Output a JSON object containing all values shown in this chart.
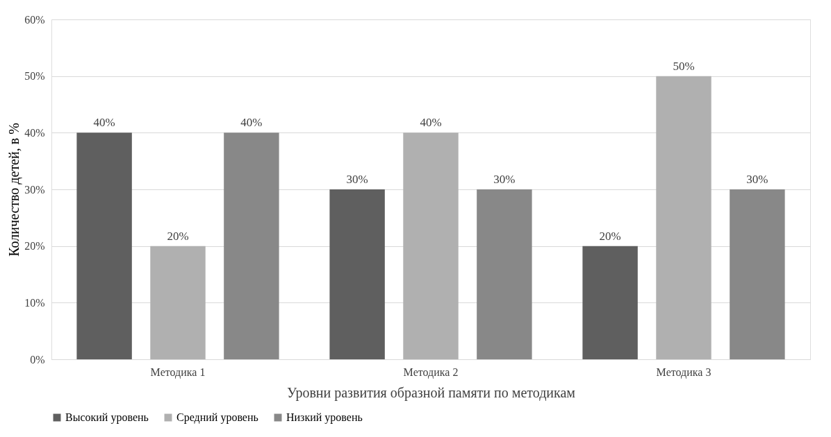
{
  "chart_data": {
    "type": "bar",
    "xlabel": "Уровни развития образной памяти по методикам",
    "ylabel": "Количество детей, в %",
    "categories": [
      "Методика 1",
      "Методика 2",
      "Методика 3"
    ],
    "series": [
      {
        "name": "Высокий уровень",
        "color": "#5f5f5f",
        "values": [
          40,
          30,
          20
        ],
        "value_labels": [
          "40%",
          "30%",
          "20%"
        ]
      },
      {
        "name": "Средний уровень",
        "color": "#b0b0b0",
        "values": [
          20,
          40,
          50
        ],
        "value_labels": [
          "20%",
          "40%",
          "50%"
        ]
      },
      {
        "name": "Низкий уровень",
        "color": "#888888",
        "values": [
          40,
          30,
          30
        ],
        "value_labels": [
          "40%",
          "30%",
          "30%"
        ]
      }
    ],
    "ylim": [
      0,
      60
    ],
    "yticks": [
      {
        "value": 0,
        "label": "0%"
      },
      {
        "value": 10,
        "label": "10%"
      },
      {
        "value": 20,
        "label": "20%"
      },
      {
        "value": 30,
        "label": "30%"
      },
      {
        "value": 40,
        "label": "40%"
      },
      {
        "value": 50,
        "label": "50%"
      },
      {
        "value": 60,
        "label": "60%"
      }
    ],
    "grid": "y",
    "legend": "bottom"
  }
}
